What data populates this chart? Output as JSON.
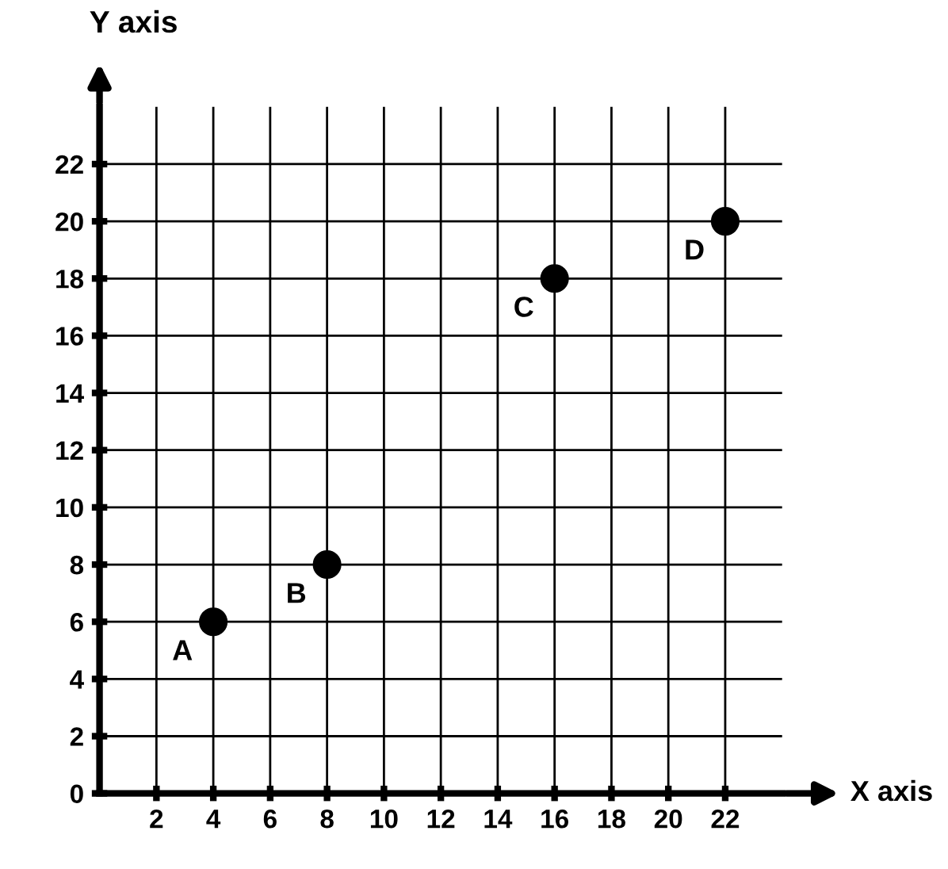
{
  "chart_data": {
    "type": "scatter",
    "xlabel": "X axis",
    "ylabel": "Y axis",
    "x": [
      4,
      8,
      16,
      22
    ],
    "series": [
      {
        "color": "#000000",
        "values": [
          6,
          8,
          18,
          20
        ]
      }
    ],
    "annotations": [
      {
        "text": "A",
        "x": 4,
        "y": 6
      },
      {
        "text": "B",
        "x": 8,
        "y": 8
      },
      {
        "text": "C",
        "x": 16,
        "y": 18
      },
      {
        "text": "D",
        "x": 22,
        "y": 20
      }
    ],
    "xlim": [
      0,
      24
    ],
    "ylim": [
      0,
      24
    ],
    "xticks": [
      2,
      4,
      6,
      8,
      10,
      12,
      14,
      16,
      18,
      20,
      22
    ],
    "yticks": [
      0,
      2,
      4,
      6,
      8,
      10,
      12,
      14,
      16,
      18,
      20,
      22
    ],
    "grid": true,
    "marker": "circle"
  }
}
